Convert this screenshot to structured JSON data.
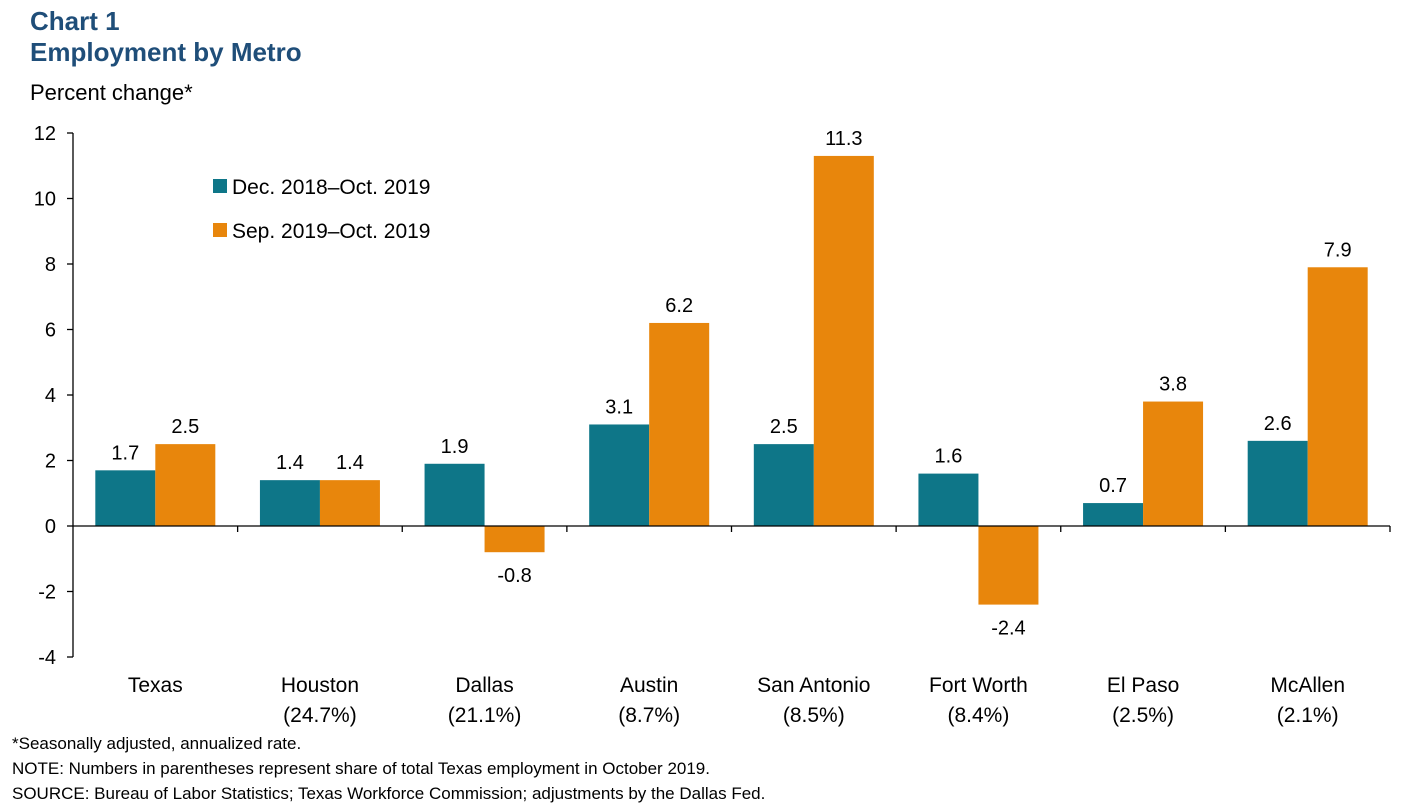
{
  "chart_label": "Chart 1",
  "chart_title": "Employment by Metro",
  "unit_label": "Percent change*",
  "notes": [
    "*Seasonally adjusted, annualized rate.",
    "NOTE: Numbers in parentheses represent share of total Texas employment in October 2019.",
    "SOURCE: Bureau of Labor Statistics; Texas Workforce Commission; adjustments by the Dallas Fed."
  ],
  "colors": {
    "series1": "#0e7688",
    "series2": "#e8860c",
    "title": "#1f4e79"
  },
  "chart_data": {
    "type": "bar",
    "categories": [
      {
        "name": "Texas",
        "share": ""
      },
      {
        "name": "Houston",
        "share": "(24.7%)"
      },
      {
        "name": "Dallas",
        "share": "(21.1%)"
      },
      {
        "name": "Austin",
        "share": "(8.7%)"
      },
      {
        "name": "San Antonio",
        "share": "(8.5%)"
      },
      {
        "name": "Fort Worth",
        "share": "(8.4%)"
      },
      {
        "name": "El Paso",
        "share": "(2.5%)"
      },
      {
        "name": "McAllen",
        "share": "(2.1%)"
      }
    ],
    "series": [
      {
        "name": "Dec. 2018–Oct. 2019",
        "values": [
          1.7,
          1.4,
          1.9,
          3.1,
          2.5,
          1.6,
          0.7,
          2.6
        ]
      },
      {
        "name": "Sep. 2019–Oct. 2019",
        "values": [
          2.5,
          1.4,
          -0.8,
          6.2,
          11.3,
          -2.4,
          3.8,
          7.9
        ]
      }
    ],
    "ylim": [
      -4,
      12
    ],
    "yticks": [
      "-4",
      "-2",
      "0",
      "2",
      "4",
      "6",
      "8",
      "10",
      "12"
    ],
    "legend_position": "top-left",
    "grid": false
  }
}
